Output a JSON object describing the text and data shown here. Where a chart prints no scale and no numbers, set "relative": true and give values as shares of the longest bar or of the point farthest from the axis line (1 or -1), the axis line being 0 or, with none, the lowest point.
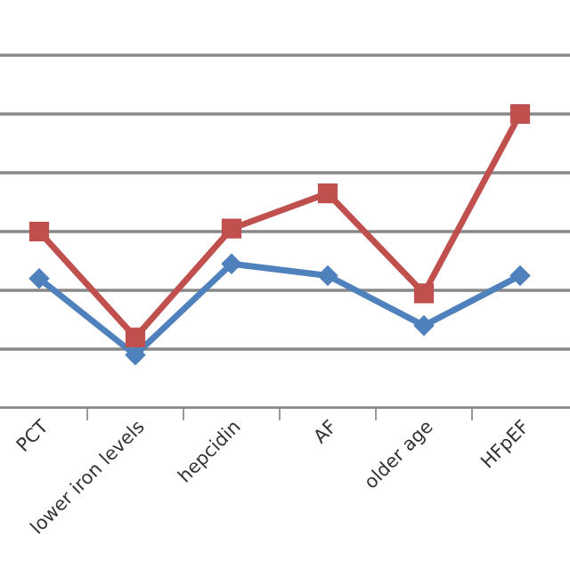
{
  "chart_data": {
    "type": "line",
    "relative": true,
    "grid": "y",
    "legend": false,
    "line_style": "solid",
    "categories": [
      "PCT",
      "lower iron levels",
      "hepcidin",
      "AF",
      "older age",
      "HFpEF"
    ],
    "series": [
      {
        "color": "#4f81bd",
        "marker": "diamond",
        "values": [
          0.44,
          0.18,
          0.49,
          0.45,
          0.28,
          0.45
        ]
      },
      {
        "color": "#c0504d",
        "marker": "square",
        "values": [
          0.6,
          0.24,
          0.61,
          0.73,
          0.39,
          1.0
        ]
      }
    ]
  }
}
